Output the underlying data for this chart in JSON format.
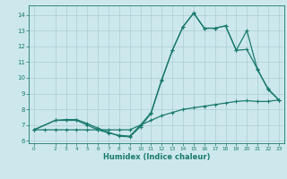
{
  "xlabel": "Humidex (Indice chaleur)",
  "bg_color": "#cde8ec",
  "grid_color": "#aacdd4",
  "line_color": "#1a7a6e",
  "xlim": [
    -0.5,
    23.5
  ],
  "ylim": [
    5.85,
    14.6
  ],
  "xticks": [
    0,
    2,
    3,
    4,
    5,
    6,
    7,
    8,
    9,
    10,
    11,
    12,
    13,
    14,
    15,
    16,
    17,
    18,
    19,
    20,
    21,
    22,
    23
  ],
  "yticks": [
    6,
    7,
    8,
    9,
    10,
    11,
    12,
    13,
    14
  ],
  "line1_x": [
    0,
    1,
    2,
    3,
    4,
    5,
    6,
    7,
    8,
    9,
    10,
    11,
    12,
    13,
    14,
    15,
    16,
    17,
    18,
    19,
    20,
    21,
    22,
    23
  ],
  "line1_y": [
    6.7,
    6.7,
    6.7,
    6.7,
    6.7,
    6.7,
    6.7,
    6.7,
    6.7,
    6.7,
    7.0,
    7.3,
    7.6,
    7.8,
    8.0,
    8.1,
    8.2,
    8.3,
    8.4,
    8.5,
    8.55,
    8.5,
    8.5,
    8.6
  ],
  "line2_x": [
    0,
    2,
    3,
    4,
    5,
    6,
    7,
    8,
    9,
    10,
    11,
    12,
    13,
    14,
    15,
    16,
    17,
    18,
    19,
    20,
    21,
    22,
    23
  ],
  "line2_y": [
    6.7,
    7.3,
    7.3,
    7.3,
    7.0,
    6.7,
    6.5,
    6.35,
    6.3,
    7.0,
    7.8,
    9.9,
    11.75,
    13.25,
    14.1,
    13.15,
    13.15,
    13.3,
    11.75,
    13.0,
    10.5,
    9.3,
    8.6
  ],
  "line3_x": [
    0,
    2,
    3,
    4,
    5,
    6,
    7,
    8,
    9,
    10,
    11,
    12,
    13,
    14,
    15,
    16,
    17,
    18,
    19,
    20,
    21,
    22,
    23
  ],
  "line3_y": [
    6.7,
    7.3,
    7.35,
    7.35,
    7.1,
    6.8,
    6.55,
    6.3,
    6.25,
    6.9,
    7.75,
    9.85,
    11.75,
    13.25,
    14.12,
    13.15,
    13.15,
    13.3,
    11.75,
    11.8,
    10.55,
    9.25,
    8.6
  ]
}
